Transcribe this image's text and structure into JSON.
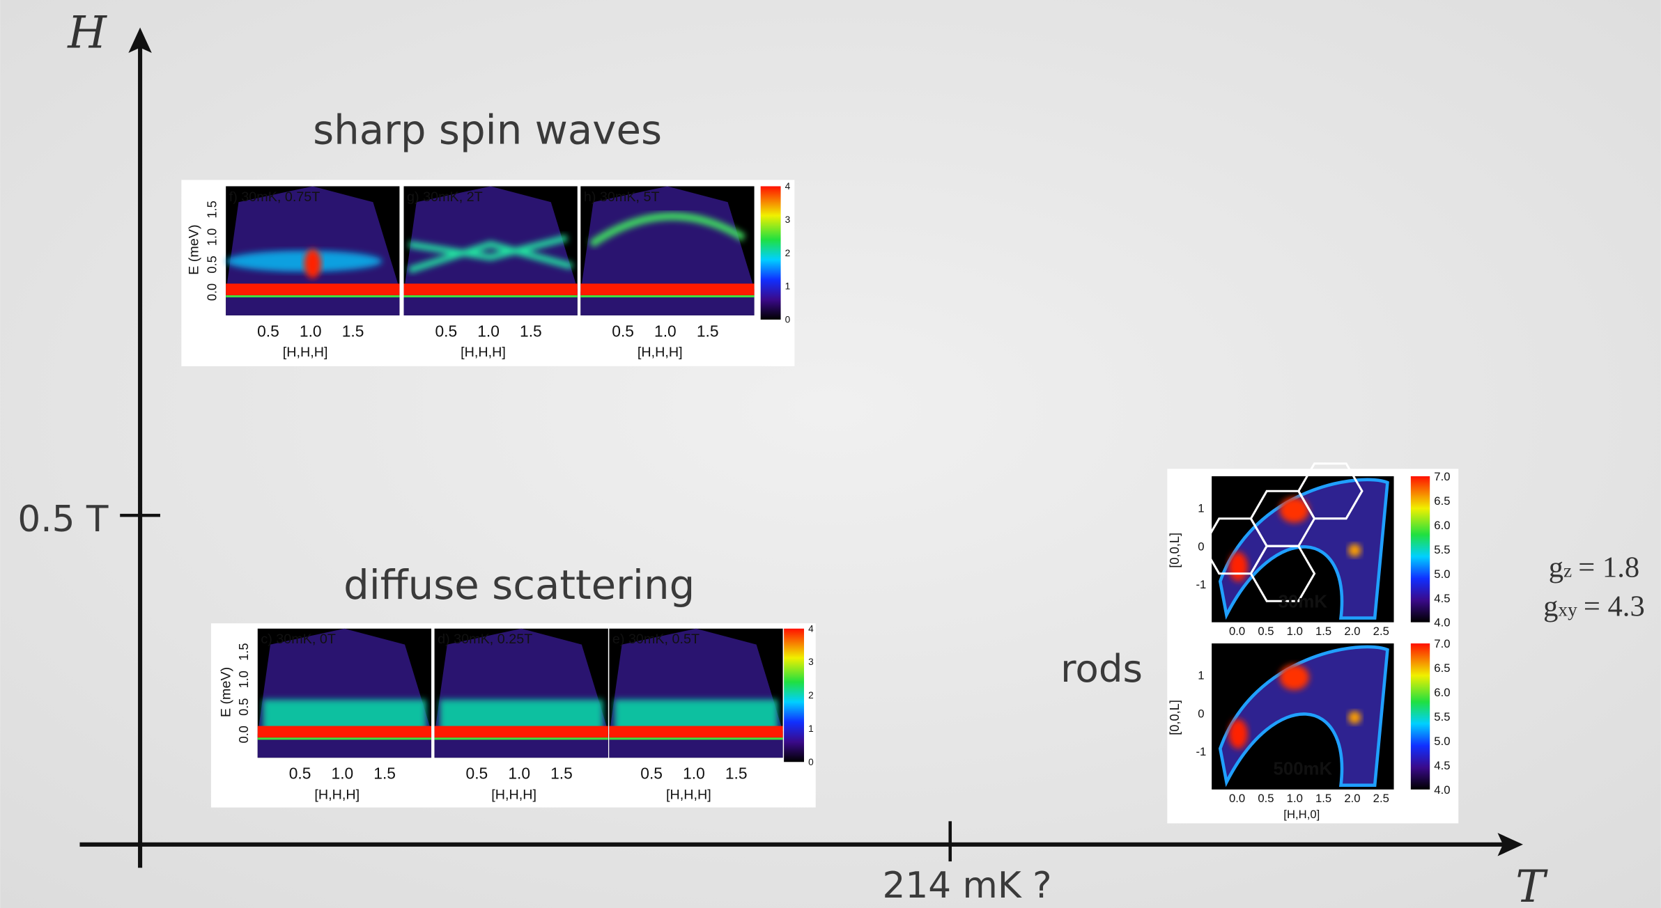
{
  "axes": {
    "y_label": "H",
    "x_label": "T",
    "y_mark": "0.5 T",
    "x_mark": "214 mK ?"
  },
  "regions": {
    "spin_waves": "sharp spin waves",
    "diffuse": "diffuse scattering",
    "rods": "rods"
  },
  "g_factors": [
    {
      "symbol": "g",
      "sub": "z",
      "value": "= 1.8"
    },
    {
      "symbol": "g",
      "sub": "xy",
      "value": "= 4.3"
    }
  ],
  "figures": {
    "spin_waves": {
      "panels": [
        "f) 30mK, 0.75T",
        "g) 30mK, 2T",
        "h) 30mK, 5T"
      ],
      "y_label": "E (meV)",
      "y_ticks": [
        "0.0",
        "0.5",
        "1.0",
        "1.5"
      ],
      "x_ticks": [
        "0.5",
        "1.0",
        "1.5"
      ],
      "x_label": "[H,H,H]",
      "colorbar_ticks": [
        "0",
        "1",
        "2",
        "3",
        "4"
      ]
    },
    "diffuse": {
      "panels": [
        "c) 30mK, 0T",
        "d) 30mK, 0.25T",
        "e) 30mK, 0.5T"
      ],
      "y_label": "E (meV)",
      "y_ticks": [
        "0.0",
        "0.5",
        "1.0",
        "1.5"
      ],
      "x_ticks": [
        "0.5",
        "1.0",
        "1.5"
      ],
      "x_label": "[H,H,H]",
      "colorbar_ticks": [
        "0",
        "1",
        "2",
        "3",
        "4"
      ]
    },
    "rods": {
      "panels": [
        "30mK",
        "500mK"
      ],
      "y_label": "[0,0,L]",
      "y_ticks": [
        "-1",
        "0",
        "1"
      ],
      "x_ticks": [
        "0.0",
        "0.5",
        "1.0",
        "1.5",
        "2.0",
        "2.5"
      ],
      "x_label": "[H,H,0]",
      "colorbar_ticks": [
        "4.0",
        "4.5",
        "5.0",
        "5.5",
        "6.0",
        "6.5",
        "7.0"
      ]
    }
  }
}
